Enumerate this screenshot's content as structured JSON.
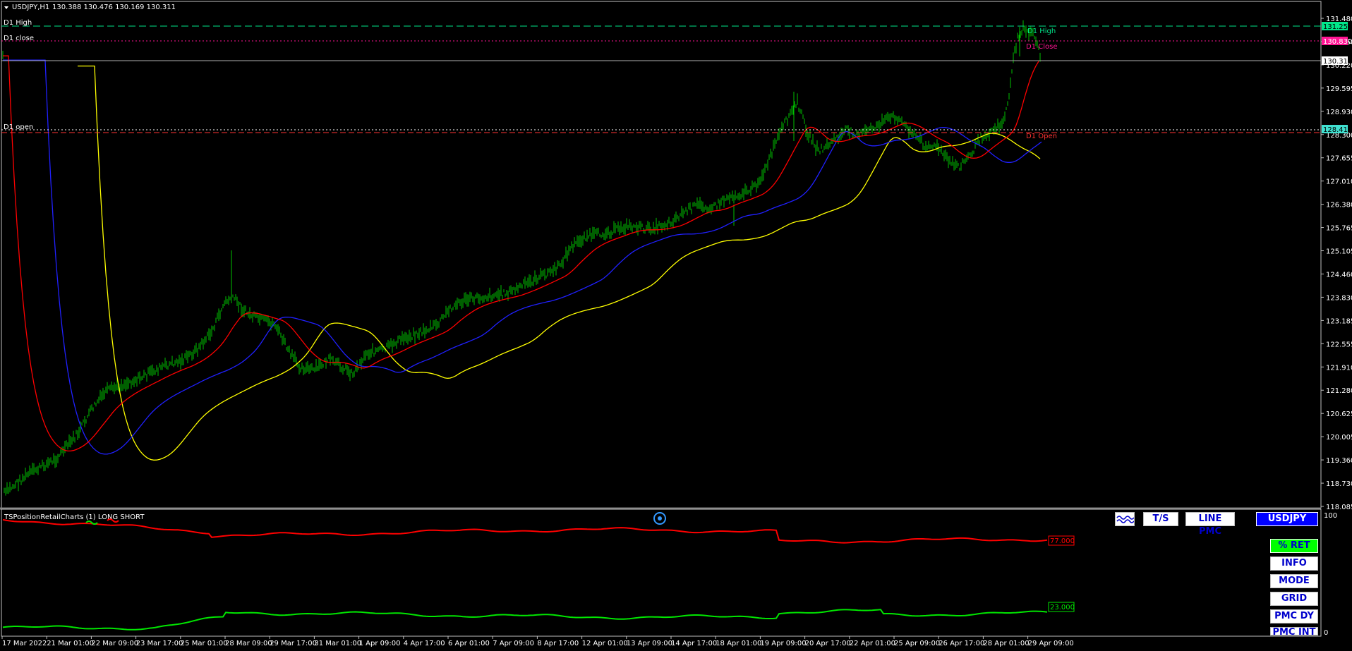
{
  "header": {
    "symbol_tf": "USDJPY,H1",
    "ohlc": "130.388 130.476 130.169 130.311"
  },
  "levels": {
    "left_high": "D1 High",
    "left_close": "D1 close",
    "left_open": "D1 open",
    "right_high": "D1 High",
    "right_close": "D1 Close",
    "right_open": "D1 Open"
  },
  "price_axis": {
    "ticks": [
      "131.480",
      "130.850",
      "130.220",
      "129.595",
      "128.930",
      "128.300",
      "127.655",
      "127.010",
      "126.380",
      "125.765",
      "125.105",
      "124.460",
      "123.830",
      "123.185",
      "122.555",
      "121.910",
      "121.280",
      "120.625",
      "120.005",
      "119.360",
      "118.730",
      "118.085"
    ],
    "tags": {
      "high": "131.253",
      "close": "130.830",
      "current": "130.311",
      "open": "128.415"
    }
  },
  "time_axis": {
    "labels": [
      "17 Mar 2022",
      "21 Mar 01:00",
      "22 Mar 09:00",
      "23 Mar 17:00",
      "25 Mar 01:00",
      "28 Mar 09:00",
      "29 Mar 17:00",
      "31 Mar 01:00",
      "1 Apr 09:00",
      "4 Apr 17:00",
      "6 Apr 01:00",
      "7 Apr 09:00",
      "8 Apr 17:00",
      "12 Apr 01:00",
      "13 Apr 09:00",
      "14 Apr 17:00",
      "18 Apr 01:00",
      "19 Apr 09:00",
      "20 Apr 17:00",
      "22 Apr 01:00",
      "25 Apr 09:00",
      "26 Apr 17:00",
      "28 Apr 01:00",
      "29 Apr 09:00"
    ]
  },
  "indicator": {
    "title": "TSPositionRetailCharts (1) LONG SHORT",
    "axis_max": "100",
    "axis_min": "0",
    "red_value": "77.000",
    "green_value": "23.000"
  },
  "buttons": {
    "ts": "T/S",
    "line_pmc": "LINE PMC",
    "symbol": "USDJPY",
    "ret": "% RET",
    "info": "INFO",
    "mode": "MODE",
    "grid": "GRID",
    "pmc_dy": "PMC DY",
    "pmc_int": "PMC INT"
  },
  "colors": {
    "candles": "#00c000",
    "ma_fast": "#ff0000",
    "ma_mid": "#2020ff",
    "ma_slow": "#ffff00",
    "level_high": "#00e68a",
    "level_close": "#ff1493",
    "level_open": "#ff3333",
    "level_current": "#b0b0b0",
    "indicator_long": "#ff0000",
    "indicator_short": "#00e600"
  },
  "icons": {
    "wave": "wave-icon",
    "center": "target-circle-icon"
  }
}
